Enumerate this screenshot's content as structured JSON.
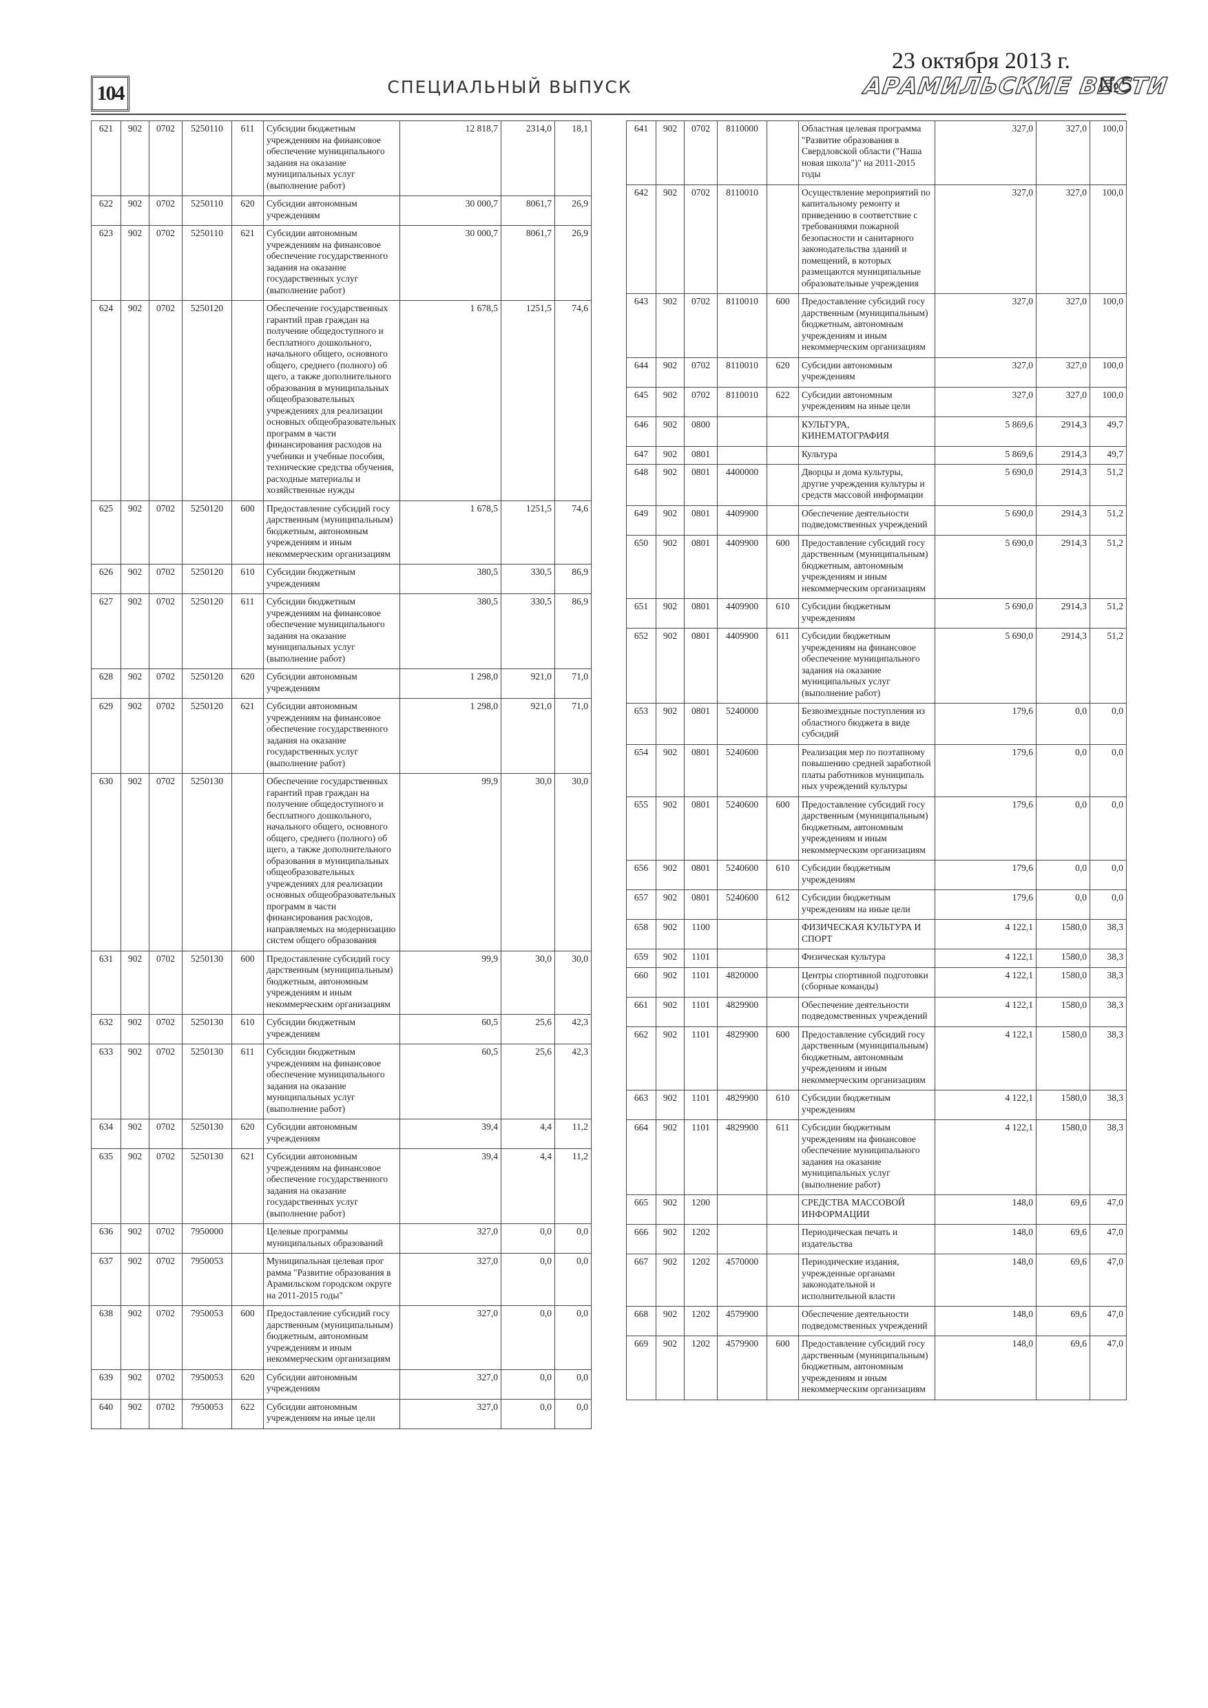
{
  "header": {
    "page_number": "104",
    "section": "СПЕЦИАЛЬНЫЙ ВЫПУСК",
    "date": "23 октября 2013 г.",
    "newspaper": "АРАМИЛЬСКИЕ ВЕСТИ",
    "issue": "№5"
  },
  "tables": [
    {
      "rows": [
        {
          "n": "621",
          "ved": "902",
          "rz": "0702",
          "csr": "5250110",
          "vr": "611",
          "name": "Субсидии бюджетным учреждениям на финансовое обеспечение муниципального задания на оказание муниципальных услуг (выполнение работ)",
          "plan": "12 818,7",
          "fact": "2314,0",
          "pct": "18,1"
        },
        {
          "n": "622",
          "ved": "902",
          "rz": "0702",
          "csr": "5250110",
          "vr": "620",
          "name": "Субсидии автономным учреждениям",
          "plan": "30 000,7",
          "fact": "8061,7",
          "pct": "26,9"
        },
        {
          "n": "623",
          "ved": "902",
          "rz": "0702",
          "csr": "5250110",
          "vr": "621",
          "name": "Субсидии автономным учреждениям на финансовое обеспечение государственного задания на оказание государственных услуг (выполнение работ)",
          "plan": "30 000,7",
          "fact": "8061,7",
          "pct": "26,9"
        },
        {
          "n": "624",
          "ved": "902",
          "rz": "0702",
          "csr": "5250120",
          "name": "Обеспечение государственных гарантий прав граждан на получение общедоступного и бесплатного дошкольного, начального общего, основного общего, среднего (полного) об щего, а также дополнительного образования в муниципальных общеобразовательных учреждениях для реализации основных общеобразовательных программ в части финансирования расходов на учебники и учебные пособия, технические средства обучения, расходные материалы и хозяйственные нужды",
          "plan": "1 678,5",
          "fact": "1251,5",
          "pct": "74,6"
        },
        {
          "n": "625",
          "ved": "902",
          "rz": "0702",
          "csr": "5250120",
          "vr": "600",
          "name": "Предоставление субсидий госу дарственным (муниципальным) бюджетным, автономным учреждениям и иным некоммерческим организациям",
          "plan": "1 678,5",
          "fact": "1251,5",
          "pct": "74,6"
        },
        {
          "n": "626",
          "ved": "902",
          "rz": "0702",
          "csr": "5250120",
          "vr": "610",
          "name": "Субсидии бюджетным учреждениям",
          "plan": "380,5",
          "fact": "330,5",
          "pct": "86,9"
        },
        {
          "n": "627",
          "ved": "902",
          "rz": "0702",
          "csr": "5250120",
          "vr": "611",
          "name": "Субсидии бюджетным учреждениям на финансовое обеспечение муниципального задания на оказание муниципальных услуг (выполнение работ)",
          "plan": "380,5",
          "fact": "330,5",
          "pct": "86,9"
        },
        {
          "n": "628",
          "ved": "902",
          "rz": "0702",
          "csr": "5250120",
          "vr": "620",
          "name": "Субсидии автономным учреждениям",
          "plan": "1 298,0",
          "fact": "921,0",
          "pct": "71,0"
        },
        {
          "n": "629",
          "ved": "902",
          "rz": "0702",
          "csr": "5250120",
          "vr": "621",
          "name": "Субсидии автономным учреждениям на финансовое обеспечение государственного задания на оказание государственных услуг (выполнение работ)",
          "plan": "1 298,0",
          "fact": "921,0",
          "pct": "71,0"
        },
        {
          "n": "630",
          "ved": "902",
          "rz": "0702",
          "csr": "5250130",
          "name": "Обеспечение государственных гарантий прав граждан на получение общедоступного и бесплатного дошкольного, начального общего, основного общего, среднего (полного) об щего, а также дополнительного образования в муниципальных общеобразовательных учреждениях для реализации основных общеобразовательных программ в части финансирования расходов, направляемых на модернизацию систем общего образования",
          "plan": "99,9",
          "fact": "30,0",
          "pct": "30,0"
        },
        {
          "n": "631",
          "ved": "902",
          "rz": "0702",
          "csr": "5250130",
          "vr": "600",
          "name": "Предоставление субсидий госу дарственным (муниципальным) бюджетным, автономным учреждениям и иным некоммерческим организациям",
          "plan": "99,9",
          "fact": "30,0",
          "pct": "30,0"
        },
        {
          "n": "632",
          "ved": "902",
          "rz": "0702",
          "csr": "5250130",
          "vr": "610",
          "name": "Субсидии бюджетным учреждениям",
          "plan": "60,5",
          "fact": "25,6",
          "pct": "42,3"
        },
        {
          "n": "633",
          "ved": "902",
          "rz": "0702",
          "csr": "5250130",
          "vr": "611",
          "name": "Субсидии бюджетным учреждениям на финансовое обеспечение муниципального задания на оказание муниципальных услуг (выполнение работ)",
          "plan": "60,5",
          "fact": "25,6",
          "pct": "42,3"
        },
        {
          "n": "634",
          "ved": "902",
          "rz": "0702",
          "csr": "5250130",
          "vr": "620",
          "name": "Субсидии автономным учреждениям",
          "plan": "39,4",
          "fact": "4,4",
          "pct": "11,2"
        },
        {
          "n": "635",
          "ved": "902",
          "rz": "0702",
          "csr": "5250130",
          "vr": "621",
          "name": "Субсидии автономным учреждениям на финансовое обеспечение государственного задания на оказание государственных услуг (выполнение работ)",
          "plan": "39,4",
          "fact": "4,4",
          "pct": "11,2"
        },
        {
          "n": "636",
          "ved": "902",
          "rz": "0702",
          "csr": "7950000",
          "name": "Целевые программы муниципальных образований",
          "plan": "327,0",
          "fact": "0,0",
          "pct": "0,0"
        },
        {
          "n": "637",
          "ved": "902",
          "rz": "0702",
          "csr": "7950053",
          "name": "Муниципальная целевая прог рамма \"Развитие образования в Арамильском городском округе на 2011-2015 годы\"",
          "plan": "327,0",
          "fact": "0,0",
          "pct": "0,0"
        },
        {
          "n": "638",
          "ved": "902",
          "rz": "0702",
          "csr": "7950053",
          "vr": "600",
          "name": "Предоставление субсидий госу дарственным (муниципальным) бюджетным, автономным учреждениям и иным некоммерческим организациям",
          "plan": "327,0",
          "fact": "0,0",
          "pct": "0,0"
        },
        {
          "n": "639",
          "ved": "902",
          "rz": "0702",
          "csr": "7950053",
          "vr": "620",
          "name": "Субсидии автономным учреждениям",
          "plan": "327,0",
          "fact": "0,0",
          "pct": "0,0"
        },
        {
          "n": "640",
          "ved": "902",
          "rz": "0702",
          "csr": "7950053",
          "vr": "622",
          "name": "Субсидии автономным учреждениям на иные цели",
          "plan": "327,0",
          "fact": "0,0",
          "pct": "0,0"
        }
      ]
    },
    {
      "rows": [
        {
          "n": "641",
          "ved": "902",
          "rz": "0702",
          "csr": "8110000",
          "name": "Областная целевая программа \"Развитие образования в Свердловской области (\"Наша новая школа\")\" на 2011-2015 годы",
          "plan": "327,0",
          "fact": "327,0",
          "pct": "100,0"
        },
        {
          "n": "642",
          "ved": "902",
          "rz": "0702",
          "csr": "8110010",
          "name": "Осуществление мероприятий по капитальному ремонту и приведению в соответствие с требованиями пожарной безопасности и санитарного законодательства зданий и помещений, в которых размещаются муниципальные образовательные учреждения",
          "plan": "327,0",
          "fact": "327,0",
          "pct": "100,0"
        },
        {
          "n": "643",
          "ved": "902",
          "rz": "0702",
          "csr": "8110010",
          "vr": "600",
          "name": "Предоставление субсидий госу дарственным (муниципальным) бюджетным, автономным учреждениям и иным некоммерческим организациям",
          "plan": "327,0",
          "fact": "327,0",
          "pct": "100,0"
        },
        {
          "n": "644",
          "ved": "902",
          "rz": "0702",
          "csr": "8110010",
          "vr": "620",
          "name": "Субсидии автономным учреждениям",
          "plan": "327,0",
          "fact": "327,0",
          "pct": "100,0"
        },
        {
          "n": "645",
          "ved": "902",
          "rz": "0702",
          "csr": "8110010",
          "vr": "622",
          "name": "Субсидии автономным учреждениям на иные цели",
          "plan": "327,0",
          "fact": "327,0",
          "pct": "100,0"
        },
        {
          "n": "646",
          "ved": "902",
          "rz": "0800",
          "name": "КУЛЬТУРА, КИНЕМАТОГРАФИЯ",
          "plan": "5 869,6",
          "fact": "2914,3",
          "pct": "49,7"
        },
        {
          "n": "647",
          "ved": "902",
          "rz": "0801",
          "name": "Культура",
          "plan": "5 869,6",
          "fact": "2914,3",
          "pct": "49,7"
        },
        {
          "n": "648",
          "ved": "902",
          "rz": "0801",
          "csr": "4400000",
          "name": "Дворцы и дома культуры, другие учреждения культуры и средств массовой информации",
          "plan": "5 690,0",
          "fact": "2914,3",
          "pct": "51,2"
        },
        {
          "n": "649",
          "ved": "902",
          "rz": "0801",
          "csr": "4409900",
          "name": "Обеспечение деятельности подведомственных учреждений",
          "plan": "5 690,0",
          "fact": "2914,3",
          "pct": "51,2"
        },
        {
          "n": "650",
          "ved": "902",
          "rz": "0801",
          "csr": "4409900",
          "vr": "600",
          "name": "Предоставление субсидий госу дарственным (муниципальным) бюджетным, автономным учреждениям и иным некоммерческим организациям",
          "plan": "5 690,0",
          "fact": "2914,3",
          "pct": "51,2"
        },
        {
          "n": "651",
          "ved": "902",
          "rz": "0801",
          "csr": "4409900",
          "vr": "610",
          "name": "Субсидии бюджетным учреждениям",
          "plan": "5 690,0",
          "fact": "2914,3",
          "pct": "51,2"
        },
        {
          "n": "652",
          "ved": "902",
          "rz": "0801",
          "csr": "4409900",
          "vr": "611",
          "name": "Субсидии бюджетным учреждениям на финансовое обеспечение муниципального задания на оказание муниципальных услуг (выполнение работ)",
          "plan": "5 690,0",
          "fact": "2914,3",
          "pct": "51,2"
        },
        {
          "n": "653",
          "ved": "902",
          "rz": "0801",
          "csr": "5240000",
          "name": "Безвозмездные поступления из областного бюджета в виде субсидий",
          "plan": "179,6",
          "fact": "0,0",
          "pct": "0,0"
        },
        {
          "n": "654",
          "ved": "902",
          "rz": "0801",
          "csr": "5240600",
          "name": "Реализация мер по поэтапному повышению средней заработной платы работников муниципаль ных учреждений культуры",
          "plan": "179,6",
          "fact": "0,0",
          "pct": "0,0"
        },
        {
          "n": "655",
          "ved": "902",
          "rz": "0801",
          "csr": "5240600",
          "vr": "600",
          "name": "Предоставление субсидий госу дарственным (муниципальным) бюджетным, автономным учреждениям и иным некоммерческим организациям",
          "plan": "179,6",
          "fact": "0,0",
          "pct": "0,0"
        },
        {
          "n": "656",
          "ved": "902",
          "rz": "0801",
          "csr": "5240600",
          "vr": "610",
          "name": "Субсидии бюджетным учреждениям",
          "plan": "179,6",
          "fact": "0,0",
          "pct": "0,0"
        },
        {
          "n": "657",
          "ved": "902",
          "rz": "0801",
          "csr": "5240600",
          "vr": "612",
          "name": "Субсидии бюджетным учреждениям на иные цели",
          "plan": "179,6",
          "fact": "0,0",
          "pct": "0,0"
        },
        {
          "n": "658",
          "ved": "902",
          "rz": "1100",
          "name": "ФИЗИЧЕСКАЯ КУЛЬТУРА И СПОРТ",
          "plan": "4 122,1",
          "fact": "1580,0",
          "pct": "38,3"
        },
        {
          "n": "659",
          "ved": "902",
          "rz": "1101",
          "name": "Физическая культура",
          "plan": "4 122,1",
          "fact": "1580,0",
          "pct": "38,3"
        },
        {
          "n": "660",
          "ved": "902",
          "rz": "1101",
          "csr": "4820000",
          "name": "Центры спортивной подготовки (сборные команды)",
          "plan": "4 122,1",
          "fact": "1580,0",
          "pct": "38,3"
        },
        {
          "n": "661",
          "ved": "902",
          "rz": "1101",
          "csr": "4829900",
          "name": "Обеспечение деятельности подведомственных учреждений",
          "plan": "4 122,1",
          "fact": "1580,0",
          "pct": "38,3"
        },
        {
          "n": "662",
          "ved": "902",
          "rz": "1101",
          "csr": "4829900",
          "vr": "600",
          "name": "Предоставление субсидий госу дарственным (муниципальным) бюджетным, автономным учреждениям и иным некоммерческим организациям",
          "plan": "4 122,1",
          "fact": "1580,0",
          "pct": "38,3"
        },
        {
          "n": "663",
          "ved": "902",
          "rz": "1101",
          "csr": "4829900",
          "vr": "610",
          "name": "Субсидии бюджетным учреждениям",
          "plan": "4 122,1",
          "fact": "1580,0",
          "pct": "38,3"
        },
        {
          "n": "664",
          "ved": "902",
          "rz": "1101",
          "csr": "4829900",
          "vr": "611",
          "name": "Субсидии бюджетным учреждениям на финансовое обеспечение муниципального задания на оказание муниципальных услуг (выполнение работ)",
          "plan": "4 122,1",
          "fact": "1580,0",
          "pct": "38,3"
        },
        {
          "n": "665",
          "ved": "902",
          "rz": "1200",
          "name": "СРЕДСТВА МАССОВОЙ ИНФОРМАЦИИ",
          "plan": "148,0",
          "fact": "69,6",
          "pct": "47,0"
        },
        {
          "n": "666",
          "ved": "902",
          "rz": "1202",
          "name": "Периодическая печать и издательства",
          "plan": "148,0",
          "fact": "69,6",
          "pct": "47,0"
        },
        {
          "n": "667",
          "ved": "902",
          "rz": "1202",
          "csr": "4570000",
          "name": "Периодические издания, учрежденные органами законодательной и исполнительной власти",
          "plan": "148,0",
          "fact": "69,6",
          "pct": "47,0"
        },
        {
          "n": "668",
          "ved": "902",
          "rz": "1202",
          "csr": "4579900",
          "name": "Обеспечение деятельности подведомственных учреждений",
          "plan": "148,0",
          "fact": "69,6",
          "pct": "47,0"
        },
        {
          "n": "669",
          "ved": "902",
          "rz": "1202",
          "csr": "4579900",
          "vr": "600",
          "name": "Предоставление субсидий госу дарственным (муниципальным) бюджетным, автономным учреждениям и иным некоммерческим организациям",
          "plan": "148,0",
          "fact": "69,6",
          "pct": "47,0"
        }
      ]
    }
  ]
}
